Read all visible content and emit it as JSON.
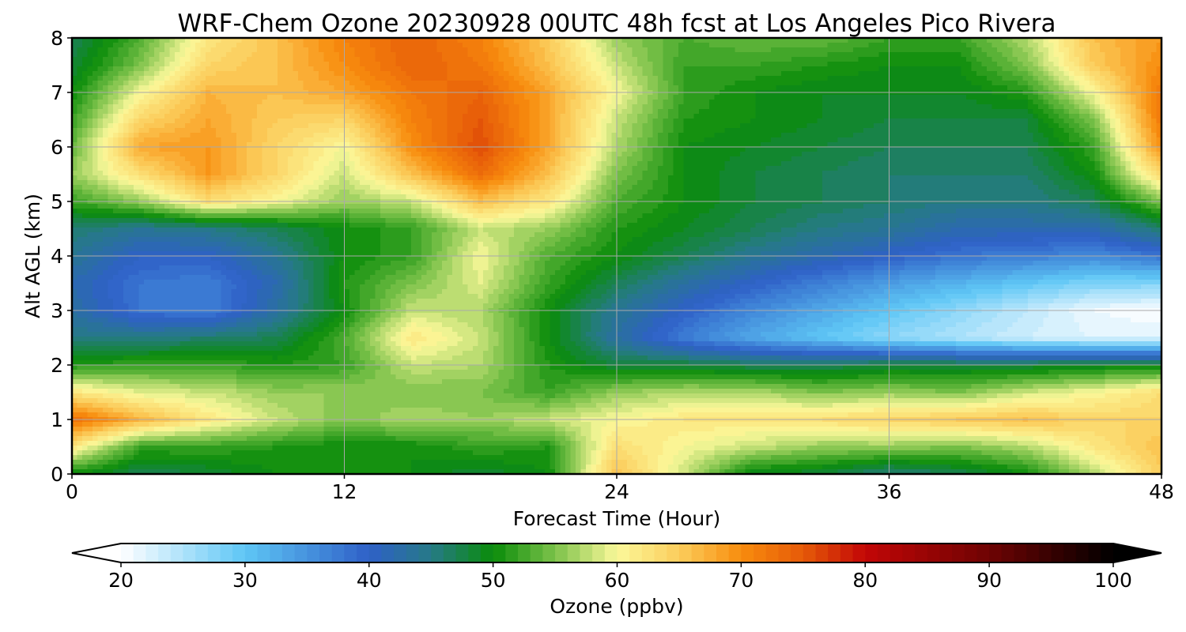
{
  "chart_data": {
    "type": "heatmap",
    "title": "WRF-Chem Ozone  20230928 00UTC 48h fcst at Los Angeles Pico Rivera",
    "xlabel": "Forecast Time (Hour)",
    "ylabel": "Alt AGL (km)",
    "xlim": [
      0,
      48
    ],
    "ylim": [
      0,
      8
    ],
    "x_ticks": [
      0,
      12,
      24,
      36,
      48
    ],
    "y_ticks": [
      0,
      1,
      2,
      3,
      4,
      5,
      6,
      7,
      8
    ],
    "grid": true,
    "colorbar": {
      "label": "Ozone  (ppbv)",
      "range": [
        20,
        100
      ],
      "ticks": [
        20,
        30,
        40,
        50,
        60,
        70,
        80,
        90,
        100
      ],
      "extend": "both",
      "levels_step": 1,
      "color_stops": [
        {
          "value": 20,
          "color": "#ffffff"
        },
        {
          "value": 30,
          "color": "#5ec6f5"
        },
        {
          "value": 40,
          "color": "#2f60c7"
        },
        {
          "value": 45,
          "color": "#267a86"
        },
        {
          "value": 50,
          "color": "#0a8c0a"
        },
        {
          "value": 55,
          "color": "#7cc24a"
        },
        {
          "value": 60,
          "color": "#fbf89a"
        },
        {
          "value": 65,
          "color": "#fbcd5c"
        },
        {
          "value": 70,
          "color": "#f88c0d"
        },
        {
          "value": 75,
          "color": "#e65a08"
        },
        {
          "value": 80,
          "color": "#c20606"
        },
        {
          "value": 90,
          "color": "#6e0303"
        },
        {
          "value": 100,
          "color": "#000000"
        }
      ]
    },
    "grid_x": [
      0,
      3,
      6,
      9,
      12,
      15,
      18,
      21,
      24,
      27,
      30,
      33,
      36,
      39,
      42,
      45,
      48
    ],
    "grid_y": [
      0,
      0.5,
      1,
      1.5,
      2,
      2.5,
      3,
      3.5,
      4,
      4.5,
      5,
      5.5,
      6,
      6.5,
      7,
      7.5,
      8
    ],
    "values": [
      [
        50,
        47,
        48,
        50,
        51,
        50,
        48,
        50,
        66,
        58,
        49,
        48,
        45,
        47,
        50,
        57,
        65
      ],
      [
        62,
        52,
        52,
        51,
        50,
        50,
        52,
        51,
        63,
        60,
        58,
        56,
        56,
        55,
        57,
        62,
        66
      ],
      [
        73,
        67,
        62,
        58,
        55,
        57,
        56,
        58,
        60,
        62,
        62,
        63,
        64,
        65,
        66,
        64,
        64
      ],
      [
        62,
        59,
        58,
        56,
        56,
        55,
        55,
        52,
        56,
        57,
        57,
        55,
        56,
        55,
        58,
        60,
        63
      ],
      [
        51,
        52,
        52,
        51,
        52,
        58,
        57,
        51,
        48,
        48,
        47,
        47,
        48,
        48,
        48,
        49,
        49
      ],
      [
        45,
        45,
        46,
        47,
        53,
        62,
        58,
        50,
        43,
        37,
        33,
        30,
        27,
        25,
        23,
        22,
        22
      ],
      [
        43,
        38,
        37,
        43,
        50,
        58,
        57,
        50,
        44,
        40,
        36,
        33,
        30,
        27,
        24,
        21,
        20
      ],
      [
        42,
        38,
        37,
        42,
        51,
        55,
        59,
        52,
        47,
        43,
        40,
        37,
        34,
        32,
        30,
        28,
        28
      ],
      [
        44,
        40,
        40,
        44,
        50,
        52,
        60,
        53,
        50,
        47,
        44,
        42,
        40,
        38,
        37,
        36,
        38
      ],
      [
        46,
        44,
        45,
        47,
        50,
        52,
        58,
        56,
        51,
        49,
        47,
        45,
        44,
        42,
        42,
        42,
        46
      ],
      [
        52,
        56,
        63,
        60,
        56,
        58,
        66,
        62,
        53,
        50,
        48,
        47,
        46,
        45,
        45,
        47,
        55
      ],
      [
        56,
        63,
        69,
        64,
        58,
        66,
        73,
        66,
        55,
        50,
        48,
        47,
        46,
        46,
        46,
        50,
        64
      ],
      [
        54,
        68,
        69,
        64,
        60,
        70,
        76,
        68,
        57,
        50,
        49,
        48,
        47,
        47,
        47,
        52,
        70
      ],
      [
        52,
        64,
        68,
        65,
        64,
        71,
        75,
        68,
        58,
        51,
        50,
        49,
        48,
        48,
        48,
        55,
        72
      ],
      [
        50,
        60,
        67,
        66,
        68,
        72,
        74,
        68,
        60,
        52,
        50,
        49,
        49,
        49,
        51,
        60,
        72
      ],
      [
        48,
        55,
        64,
        66,
        70,
        74,
        72,
        66,
        58,
        52,
        52,
        51,
        50,
        50,
        55,
        65,
        70
      ],
      [
        47,
        53,
        62,
        66,
        71,
        74,
        71,
        65,
        56,
        53,
        54,
        54,
        52,
        52,
        57,
        66,
        69
      ]
    ]
  }
}
